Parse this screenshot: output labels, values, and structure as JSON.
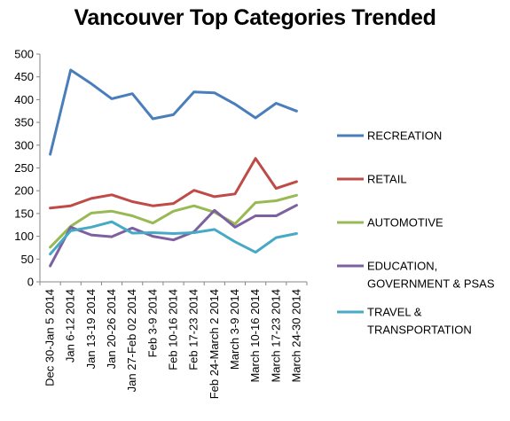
{
  "chart_data": {
    "type": "line",
    "title": "Vancouver Top Categories Trended",
    "xlabel": "",
    "ylabel": "",
    "ylim": [
      0,
      500
    ],
    "ytick_step": 50,
    "grid": false,
    "legend_position": "right",
    "categories": [
      "Dec 30-Jan 5 2014",
      "Jan 6-12 2014",
      "Jan 13-19 2014",
      "Jan 20-26 2014",
      "Jan 27-Feb 02 2014",
      "Feb 3-9 2014",
      "Feb 10-16 2014",
      "Feb 17-23 2014",
      "Feb 24-March 2 2014",
      "March 3-9 2014",
      "March 10-16 2014",
      "March 17-23 2014",
      "March 24-30 2014"
    ],
    "series": [
      {
        "name": "RECREATION",
        "color": "#4A7EBB",
        "values": [
          280,
          465,
          435,
          402,
          413,
          358,
          367,
          417,
          415,
          390,
          360,
          392,
          375
        ]
      },
      {
        "name": "RETAIL",
        "color": "#BE4B48",
        "values": [
          162,
          167,
          183,
          191,
          176,
          167,
          172,
          201,
          187,
          193,
          271,
          205,
          220
        ]
      },
      {
        "name": "AUTOMOTIVE",
        "color": "#98B954",
        "values": [
          76,
          122,
          151,
          155,
          145,
          129,
          155,
          167,
          153,
          127,
          174,
          178,
          190
        ]
      },
      {
        "name": "EDUCATION, GOVERNMENT & PSAS",
        "color": "#7D60A0",
        "label_lines": [
          "EDUCATION,",
          "GOVERNMENT & PSAS"
        ],
        "values": [
          35,
          120,
          103,
          99,
          118,
          100,
          92,
          110,
          157,
          120,
          145,
          145,
          168
        ]
      },
      {
        "name": "TRAVEL & TRANSPORTATION",
        "color": "#46AAC5",
        "label_lines": [
          "TRAVEL &",
          "TRANSPORTATION"
        ],
        "values": [
          61,
          112,
          120,
          132,
          107,
          108,
          106,
          108,
          115,
          88,
          65,
          97,
          106
        ]
      }
    ]
  }
}
